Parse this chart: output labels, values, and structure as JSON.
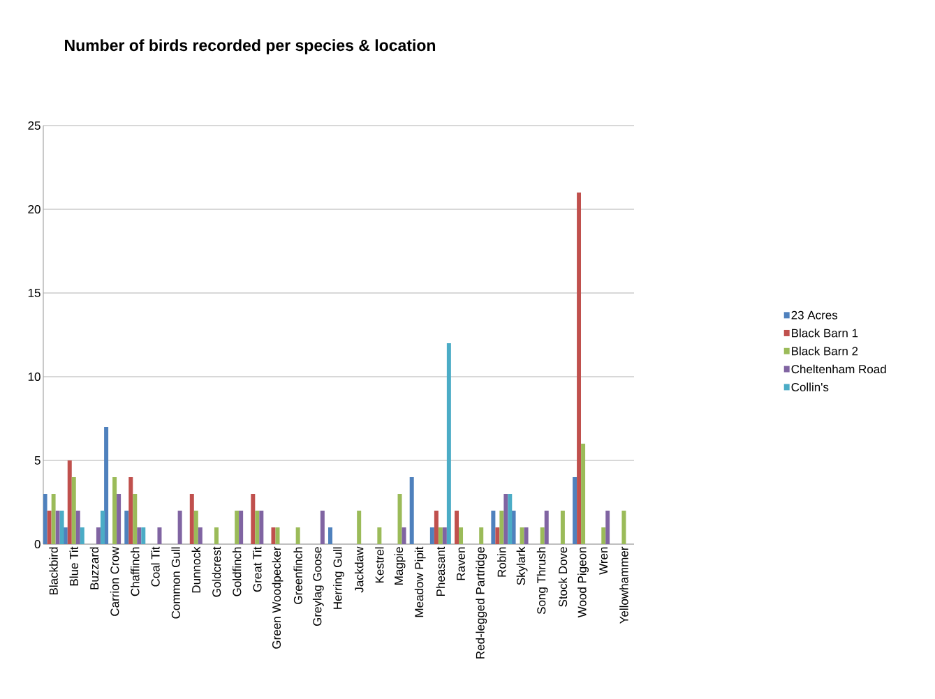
{
  "chart_data": {
    "type": "bar",
    "title": "Number of birds recorded per species & location",
    "categories": [
      "Blackbird",
      "Blue Tit",
      "Buzzard",
      "Carrion Crow",
      "Chaffinch",
      "Coal Tit",
      "Common Gull",
      "Dunnock",
      "Goldcrest",
      "Goldfinch",
      "Great Tit",
      "Green Woodpecker",
      "Greenfinch",
      "Greylag Goose",
      "Herring Gull",
      "Jackdaw",
      "Kestrel",
      "Magpie",
      "Meadow Pipit",
      "Pheasant",
      "Raven",
      "Red-legged Partridge",
      "Robin",
      "Skylark",
      "Song Thrush",
      "Stock Dove",
      "Wood Pigeon",
      "Wren",
      "Yellowhammer"
    ],
    "series": [
      {
        "name": "23 Acres",
        "color": "#4f81bd",
        "values": [
          3,
          1,
          null,
          7,
          2,
          null,
          null,
          null,
          null,
          null,
          null,
          null,
          null,
          null,
          1,
          null,
          null,
          null,
          4,
          1,
          null,
          null,
          2,
          2,
          null,
          null,
          4,
          null,
          null
        ]
      },
      {
        "name": "Black Barn 1",
        "color": "#c0504d",
        "values": [
          2,
          5,
          null,
          null,
          4,
          null,
          null,
          3,
          null,
          null,
          3,
          1,
          null,
          null,
          null,
          null,
          null,
          null,
          null,
          2,
          2,
          null,
          1,
          null,
          null,
          null,
          21,
          null,
          null
        ]
      },
      {
        "name": "Black Barn 2",
        "color": "#9bbb59",
        "values": [
          3,
          4,
          null,
          4,
          3,
          null,
          null,
          2,
          1,
          2,
          2,
          1,
          1,
          null,
          null,
          2,
          1,
          3,
          null,
          1,
          1,
          1,
          2,
          1,
          1,
          2,
          6,
          1,
          2
        ]
      },
      {
        "name": "Cheltenham Road",
        "color": "#8064a2",
        "values": [
          2,
          2,
          1,
          3,
          1,
          1,
          2,
          1,
          null,
          2,
          2,
          null,
          null,
          2,
          null,
          null,
          null,
          1,
          null,
          1,
          null,
          null,
          3,
          1,
          2,
          null,
          null,
          2,
          null
        ]
      },
      {
        "name": "Collin's",
        "color": "#4bacc6",
        "values": [
          2,
          1,
          2,
          null,
          1,
          null,
          null,
          null,
          null,
          null,
          null,
          null,
          null,
          null,
          null,
          null,
          null,
          null,
          null,
          12,
          null,
          null,
          3,
          null,
          null,
          null,
          null,
          null,
          null
        ]
      }
    ],
    "ylim": [
      0,
      25
    ],
    "yticks": [
      0,
      5,
      10,
      15,
      20,
      25
    ],
    "grid": "y",
    "legend": "right"
  }
}
